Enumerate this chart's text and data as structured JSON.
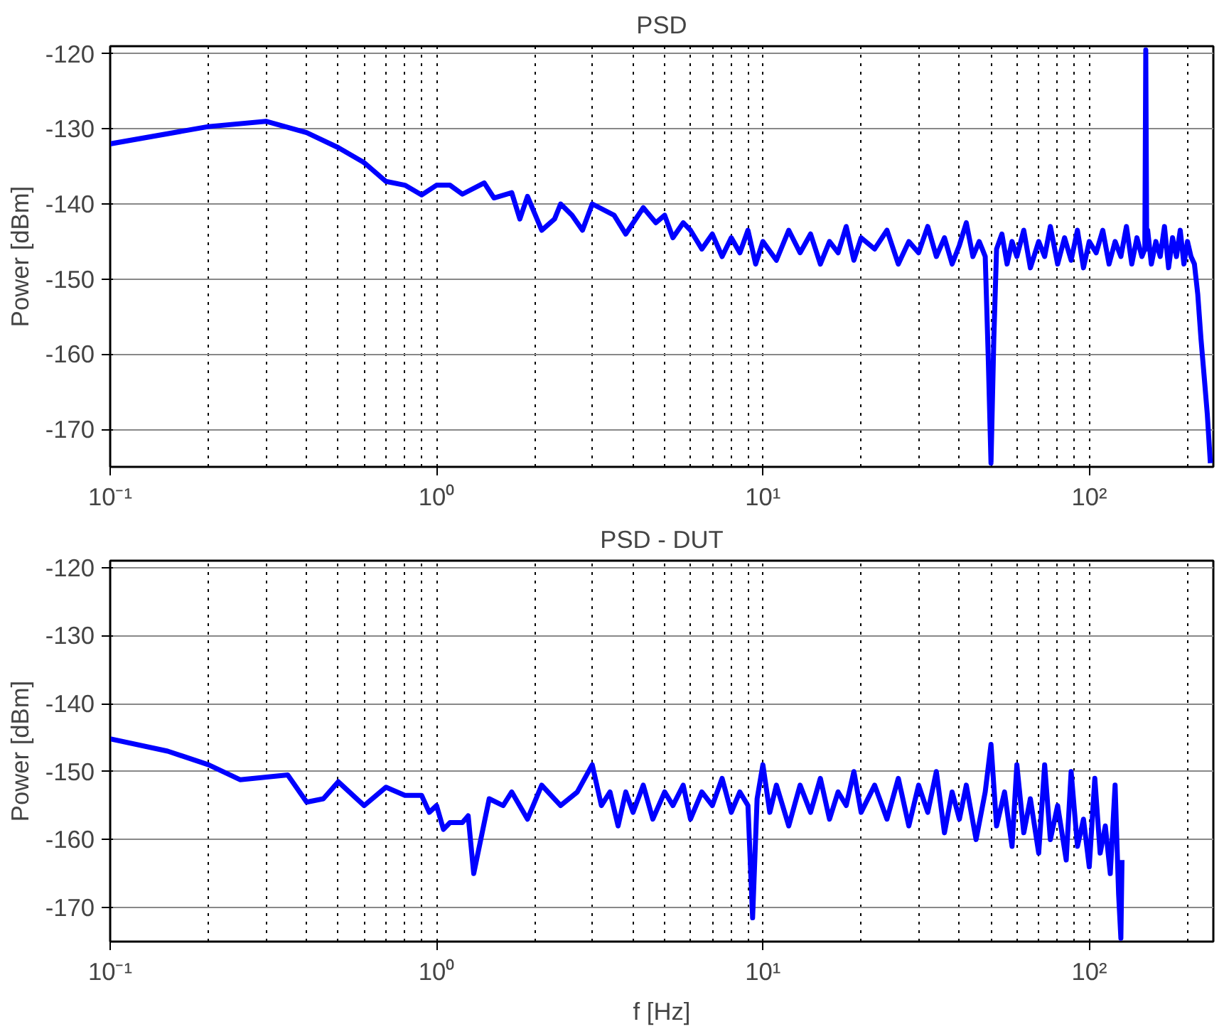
{
  "chart_data": [
    {
      "type": "line",
      "title": "PSD",
      "ylabel": "Power [dBm]",
      "log": "x",
      "grid": true,
      "line_style": "solid",
      "marker": "none",
      "xlim": [
        0.1,
        240
      ],
      "ylim": [
        -175,
        -119
      ],
      "xticks": [
        {
          "value": 0.1,
          "label": "10⁻¹"
        },
        {
          "value": 1,
          "label": "10⁰"
        },
        {
          "value": 10,
          "label": "10¹"
        },
        {
          "value": 100,
          "label": "10²"
        }
      ],
      "yticks": [
        -120,
        -130,
        -140,
        -150,
        -160,
        -170
      ],
      "series": [
        {
          "color": "#0000ff",
          "x": [
            0.1,
            0.2,
            0.3,
            0.4,
            0.5,
            0.6,
            0.7,
            0.8,
            0.9,
            1.0,
            1.1,
            1.2,
            1.4,
            1.5,
            1.7,
            1.8,
            1.9,
            2.1,
            2.3,
            2.4,
            2.6,
            2.8,
            3.0,
            3.5,
            3.8,
            4.3,
            4.7,
            5.0,
            5.3,
            5.7,
            6.0,
            6.5,
            7,
            7.5,
            8,
            8.5,
            9,
            9.5,
            10,
            11,
            12,
            13,
            14,
            15,
            16,
            17,
            18,
            19,
            20,
            22,
            24,
            26,
            28,
            30,
            32,
            34,
            36,
            38,
            40,
            42,
            44,
            46,
            47,
            48,
            49,
            50,
            51,
            52,
            54,
            56,
            58,
            60,
            63,
            66,
            70,
            73,
            76,
            80,
            84,
            88,
            92,
            96,
            100,
            105,
            110,
            115,
            120,
            125,
            130,
            135,
            140,
            145,
            148,
            149,
            150,
            151,
            155,
            160,
            165,
            170,
            175,
            180,
            185,
            190,
            195,
            200,
            205,
            210,
            215,
            220,
            225,
            230,
            235
          ],
          "values": [
            -132,
            -129.7,
            -129,
            -130.5,
            -132.5,
            -134.5,
            -137,
            -137.5,
            -138.8,
            -137.5,
            -137.5,
            -138.7,
            -137.2,
            -139.2,
            -138.5,
            -142,
            -139,
            -143.5,
            -142,
            -140,
            -141.5,
            -143.5,
            -140,
            -141.5,
            -144,
            -140.5,
            -142.5,
            -141.5,
            -144.5,
            -142.5,
            -143.5,
            -146,
            -144,
            -147,
            -144.5,
            -146.5,
            -143.5,
            -148,
            -145,
            -147.5,
            -143.5,
            -146.5,
            -144,
            -148,
            -145,
            -146.5,
            -143,
            -147.5,
            -144.5,
            -146,
            -143.5,
            -148,
            -145,
            -146.5,
            -143,
            -147,
            -144.5,
            -148,
            -145.5,
            -142.5,
            -147,
            -145,
            -146,
            -147,
            -160,
            -174.5,
            -158,
            -146,
            -144,
            -148,
            -145,
            -147,
            -143.5,
            -148.5,
            -145,
            -147,
            -143,
            -148,
            -144.5,
            -147.5,
            -143.5,
            -148.5,
            -145,
            -146.5,
            -143.5,
            -148,
            -145,
            -147,
            -143,
            -148,
            -144.5,
            -147,
            -146,
            -119.5,
            -146,
            -143.5,
            -148,
            -145,
            -147,
            -143,
            -148.5,
            -144.5,
            -147,
            -143.5,
            -148,
            -145,
            -147,
            -148,
            -152,
            -158,
            -163,
            -168,
            -174.5
          ]
        }
      ]
    },
    {
      "type": "line",
      "title": "PSD - DUT",
      "xlabel": "f [Hz]",
      "ylabel": "Power [dBm]",
      "log": "x",
      "grid": true,
      "line_style": "solid",
      "marker": "none",
      "xlim": [
        0.1,
        240
      ],
      "ylim": [
        -175,
        -119
      ],
      "xticks": [
        {
          "value": 0.1,
          "label": "10⁻¹"
        },
        {
          "value": 1,
          "label": "10⁰"
        },
        {
          "value": 10,
          "label": "10¹"
        },
        {
          "value": 100,
          "label": "10²"
        }
      ],
      "yticks": [
        -120,
        -130,
        -140,
        -150,
        -160,
        -170
      ],
      "series": [
        {
          "color": "#0000ff",
          "x": [
            0.1,
            0.15,
            0.2,
            0.25,
            0.35,
            0.4,
            0.45,
            0.5,
            0.6,
            0.7,
            0.8,
            0.9,
            0.95,
            1.0,
            1.05,
            1.1,
            1.2,
            1.25,
            1.3,
            1.45,
            1.6,
            1.7,
            1.9,
            2.1,
            2.4,
            2.7,
            3,
            3.2,
            3.4,
            3.6,
            3.8,
            4,
            4.3,
            4.6,
            5,
            5.3,
            5.7,
            6,
            6.5,
            7,
            7.5,
            8,
            8.5,
            9,
            9.3,
            9.6,
            10,
            10.5,
            11,
            12,
            13,
            14,
            15,
            16,
            17,
            18,
            19,
            20,
            22,
            24,
            26,
            28,
            30,
            32,
            34,
            36,
            38,
            40,
            42,
            45,
            48,
            50,
            52,
            55,
            58,
            60,
            63,
            66,
            70,
            73,
            76,
            80,
            85,
            88,
            92,
            96,
            100,
            104,
            108,
            112,
            116,
            120,
            123,
            125,
            126
          ],
          "values": [
            -145.2,
            -147,
            -149,
            -151.2,
            -150.5,
            -154.5,
            -154,
            -151.5,
            -155,
            -152.3,
            -153.5,
            -153.5,
            -156,
            -155,
            -158.5,
            -157.5,
            -157.5,
            -156.5,
            -165,
            -154,
            -155,
            -153,
            -157,
            -152,
            -155,
            -153,
            -149,
            -155,
            -153,
            -158,
            -153,
            -156,
            -152,
            -157,
            -153,
            -155,
            -152,
            -157,
            -153,
            -155,
            -151,
            -156,
            -153,
            -155,
            -171.5,
            -154,
            -149,
            -156,
            -152,
            -158,
            -152,
            -156,
            -151,
            -157,
            -153,
            -155,
            -150,
            -156,
            -152,
            -157,
            -151,
            -158,
            -152,
            -156,
            -150,
            -159,
            -153,
            -157,
            -152,
            -160,
            -153,
            -146,
            -158,
            -153,
            -161,
            -149,
            -159,
            -154,
            -162,
            -149,
            -160,
            -155,
            -163,
            -150,
            -161,
            -157,
            -164,
            -151,
            -162,
            -158,
            -165,
            -152,
            -168,
            -174.5,
            -163
          ]
        }
      ]
    }
  ]
}
